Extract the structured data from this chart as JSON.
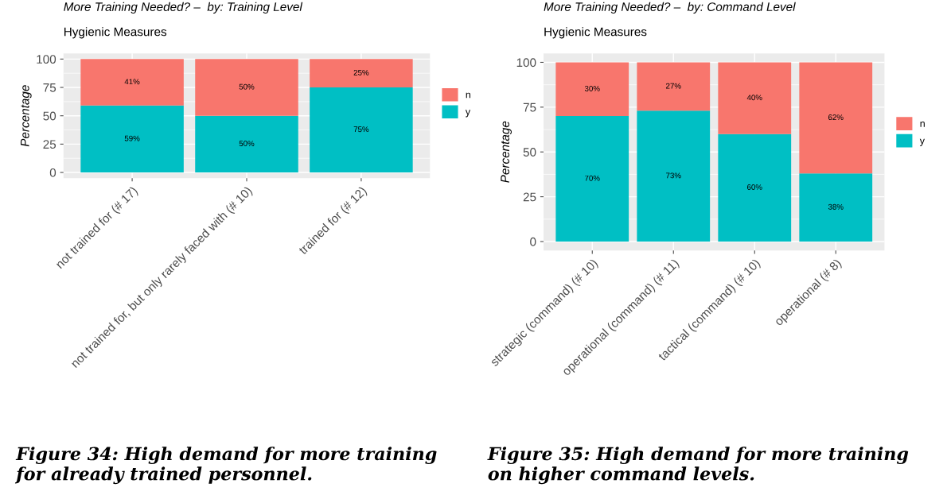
{
  "chart_data": [
    {
      "type": "bar",
      "stacked": true,
      "title": "More Training Needed? –  by: Training Level",
      "subtitle": "Hygienic Measures",
      "ylabel": "Percentage",
      "categories": [
        "not trained for (# 17)",
        "not trained for, but only rarely faced with (# 10)",
        "trained for (# 12)"
      ],
      "series": [
        {
          "name": "y",
          "color": "#00bfc4",
          "values": [
            59,
            50,
            75
          ],
          "value_labels": [
            "59%",
            "50%",
            "75%"
          ]
        },
        {
          "name": "n",
          "color": "#f8766d",
          "values": [
            41,
            50,
            25
          ],
          "value_labels": [
            "41%",
            "50%",
            "25%"
          ]
        }
      ],
      "ylim": [
        -5,
        105
      ],
      "yticks": [
        0,
        25,
        50,
        75,
        100
      ],
      "grid": true,
      "legend": "right",
      "annotations": [
        "Figure 34: High demand for more training for already trained personnel."
      ]
    },
    {
      "type": "bar",
      "stacked": true,
      "title": "More Training Needed? –  by: Command Level",
      "subtitle": "Hygienic Measures",
      "ylabel": "Percentage",
      "categories": [
        "strategic (command) (# 10)",
        "operational (command) (# 11)",
        "tactical (command) (# 10)",
        "operational (# 8)"
      ],
      "series": [
        {
          "name": "y",
          "color": "#00bfc4",
          "values": [
            70,
            73,
            60,
            38
          ],
          "value_labels": [
            "70%",
            "73%",
            "60%",
            "38%"
          ]
        },
        {
          "name": "n",
          "color": "#f8766d",
          "values": [
            30,
            27,
            40,
            62
          ],
          "value_labels": [
            "30%",
            "27%",
            "40%",
            "62%"
          ]
        }
      ],
      "ylim": [
        -5,
        105
      ],
      "yticks": [
        0,
        25,
        50,
        75,
        100
      ],
      "grid": true,
      "legend": "right",
      "annotations": [
        "Figure 35: High demand for more training on higher command levels."
      ]
    }
  ]
}
